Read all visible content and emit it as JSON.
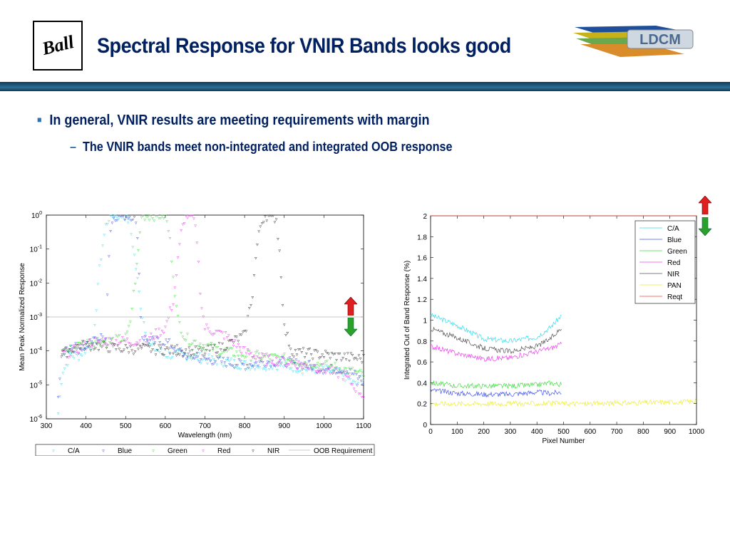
{
  "slide": {
    "title": "Spectral Response for VNIR Bands looks good",
    "ball_logo": "Ball",
    "ldcm_logo": "LDCM",
    "bullet1": "In general, VNIR results are meeting requirements with margin",
    "bullet2": "The VNIR bands meet non-integrated and integrated OOB response",
    "colors": {
      "title": "#002060",
      "bar": "#1f5a7d",
      "up_arrow": "#e02020",
      "down_arrow": "#2aa12a"
    }
  },
  "chart_data": [
    {
      "type": "scatter",
      "xlabel": "Wavelength (nm)",
      "ylabel": "Mean Peak Normalized Response",
      "xlim": [
        300,
        1100
      ],
      "ylim": [
        1e-06,
        1
      ],
      "yscale": "log",
      "xticks": [
        300,
        400,
        500,
        600,
        700,
        800,
        900,
        1000,
        1100
      ],
      "yticks": [
        {
          "base": "10",
          "exp": "0",
          "value": 1
        },
        {
          "base": "10",
          "exp": "-1",
          "value": 0.1
        },
        {
          "base": "10",
          "exp": "-2",
          "value": 0.01
        },
        {
          "base": "10",
          "exp": "-3",
          "value": 0.001
        },
        {
          "base": "10",
          "exp": "-4",
          "value": 0.0001
        },
        {
          "base": "10",
          "exp": "-5",
          "value": 1e-05
        },
        {
          "base": "10",
          "exp": "-6",
          "value": 1e-06
        }
      ],
      "legend_position": "bottom",
      "series": [
        {
          "name": "C/A",
          "color": "#33ddee",
          "x": [
            330,
            340,
            350,
            360,
            380,
            400,
            420,
            430,
            440,
            450,
            460,
            470,
            480,
            490,
            500,
            510,
            520,
            540,
            560,
            600,
            650,
            700,
            750,
            800,
            850,
            900,
            950,
            1000,
            1050,
            1080,
            1100
          ],
          "y": [
            1.5e-06,
            2.5e-05,
            4e-05,
            8e-05,
            7e-05,
            0.00012,
            0.0002,
            0.01,
            0.1,
            0.5,
            1,
            1,
            1,
            1,
            1,
            0.6,
            0.1,
            0.0015,
            0.00015,
            8e-05,
            8e-05,
            6e-05,
            5e-05,
            4e-05,
            4e-05,
            4e-05,
            3e-05,
            3e-05,
            2e-05,
            1e-05,
            2e-05
          ]
        },
        {
          "name": "Blue",
          "color": "#3344dd",
          "x": [
            330,
            340,
            360,
            380,
            400,
            420,
            440,
            450,
            460,
            470,
            480,
            490,
            500,
            510,
            520,
            530,
            540,
            560,
            600,
            650,
            700,
            750,
            800,
            850,
            900,
            950,
            1000,
            1050,
            1080,
            1100
          ],
          "y": [
            5e-06,
            9e-05,
            0.00015,
            0.00012,
            0.00015,
            0.0002,
            0.00025,
            0.0003,
            0.3,
            1,
            1,
            1,
            1,
            1,
            1,
            0.3,
            0.0003,
            0.0002,
            0.0002,
            8e-05,
            6e-05,
            5e-05,
            4e-05,
            5e-05,
            5e-05,
            4e-05,
            3e-05,
            3e-05,
            2e-05,
            1.2e-05
          ]
        },
        {
          "name": "Green",
          "color": "#33dd33",
          "x": [
            340,
            380,
            420,
            460,
            500,
            510,
            520,
            530,
            540,
            560,
            580,
            600,
            610,
            620,
            630,
            650,
            700,
            750,
            800,
            850,
            900,
            950,
            1000,
            1050,
            1100
          ],
          "y": [
            9e-05,
            0.00015,
            0.0002,
            0.0002,
            0.00025,
            0.0005,
            0.005,
            0.05,
            1,
            1,
            1,
            1,
            0.3,
            0.02,
            0.001,
            0.00025,
            0.00015,
            0.0001,
            8e-05,
            7e-05,
            6e-05,
            5e-05,
            4e-05,
            3e-05,
            2e-05
          ]
        },
        {
          "name": "Red",
          "color": "#ee33ee",
          "x": [
            340,
            380,
            420,
            460,
            500,
            550,
            600,
            620,
            640,
            650,
            660,
            670,
            680,
            690,
            700,
            720,
            750,
            800,
            850,
            900,
            950,
            1000,
            1050,
            1100
          ],
          "y": [
            8e-05,
            0.00012,
            0.0002,
            0.0002,
            0.0002,
            0.0002,
            0.0005,
            0.003,
            0.3,
            1,
            1,
            1,
            0.2,
            0.003,
            0.0005,
            0.0004,
            0.0003,
            0.0001,
            6e-05,
            5e-05,
            4e-05,
            3e-05,
            2e-05,
            5e-06
          ]
        },
        {
          "name": "NIR",
          "color": "#222222",
          "x": [
            340,
            380,
            420,
            460,
            500,
            550,
            600,
            650,
            700,
            750,
            800,
            820,
            830,
            840,
            850,
            860,
            870,
            880,
            890,
            900,
            920,
            950,
            1000,
            1050,
            1100
          ],
          "y": [
            8e-05,
            0.00015,
            0.00015,
            0.00013,
            0.00012,
            0.00012,
            0.00011,
            0.0001,
            0.0001,
            0.00015,
            0.0003,
            0.005,
            0.1,
            0.5,
            1,
            1,
            1,
            0.8,
            0.05,
            0.0005,
            0.0001,
            9e-05,
            8e-05,
            7e-05,
            6e-05
          ]
        },
        {
          "name": "OOB Requirement",
          "color": "#b8b8b8",
          "x": [
            300,
            1100
          ],
          "y": [
            0.001,
            0.001
          ]
        }
      ]
    },
    {
      "type": "line",
      "xlabel": "Pixel Number",
      "ylabel": "Integrated Out of Band Response (%)",
      "xlim": [
        0,
        1000
      ],
      "ylim": [
        0,
        2
      ],
      "xticks": [
        0,
        100,
        200,
        300,
        400,
        500,
        600,
        700,
        800,
        900,
        1000
      ],
      "yticks": [
        0,
        0.2,
        0.4,
        0.6,
        0.8,
        1,
        1.2,
        1.4,
        1.6,
        1.8,
        2
      ],
      "legend_position": "top-right",
      "series": [
        {
          "name": "C/A",
          "color": "#33ddee",
          "x": [
            0,
            100,
            200,
            300,
            400,
            450,
            494
          ],
          "y": [
            1.05,
            0.95,
            0.82,
            0.8,
            0.84,
            0.93,
            1.05
          ]
        },
        {
          "name": "Blue",
          "color": "#4455ee",
          "x": [
            0,
            100,
            200,
            300,
            400,
            450,
            494
          ],
          "y": [
            0.33,
            0.3,
            0.29,
            0.29,
            0.31,
            0.3,
            0.31
          ]
        },
        {
          "name": "Green",
          "color": "#44dd44",
          "x": [
            0,
            100,
            200,
            300,
            400,
            450,
            494
          ],
          "y": [
            0.4,
            0.37,
            0.37,
            0.37,
            0.38,
            0.4,
            0.38
          ]
        },
        {
          "name": "Red",
          "color": "#ee44ee",
          "x": [
            0,
            100,
            200,
            300,
            400,
            450,
            494
          ],
          "y": [
            0.75,
            0.68,
            0.63,
            0.64,
            0.7,
            0.73,
            0.77
          ]
        },
        {
          "name": "NIR",
          "color": "#555555",
          "x": [
            0,
            100,
            200,
            300,
            400,
            450,
            494
          ],
          "y": [
            0.92,
            0.83,
            0.73,
            0.7,
            0.75,
            0.82,
            0.93
          ]
        },
        {
          "name": "PAN",
          "color": "#eeee33",
          "x": [
            0,
            200,
            400,
            600,
            800,
            1000
          ],
          "y": [
            0.2,
            0.2,
            0.2,
            0.2,
            0.21,
            0.22
          ]
        },
        {
          "name": "Reqt",
          "color": "#ee4444",
          "x": [
            0,
            1000
          ],
          "y": [
            2,
            2
          ]
        }
      ]
    }
  ]
}
